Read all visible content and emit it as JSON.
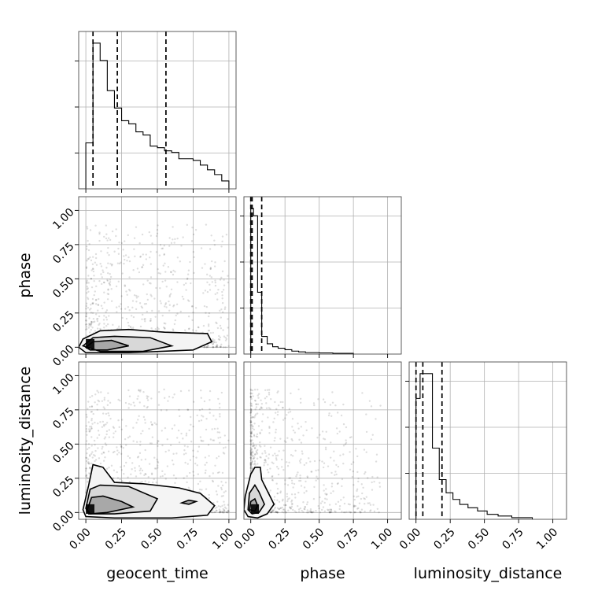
{
  "chart_data": {
    "type": "corner",
    "parameters": [
      "geocent_time",
      "phase",
      "luminosity_distance"
    ],
    "axis_labels": {
      "geocent_time": "geocent_time",
      "phase": "phase",
      "luminosity_distance": "luminosity_distance"
    },
    "tick_labels": [
      "0.00",
      "0.25",
      "0.50",
      "0.75",
      "1.00"
    ],
    "ticks": [
      0,
      0.25,
      0.5,
      0.75,
      1.0
    ],
    "axis_ranges": {
      "geocent_time": [
        -0.05,
        1.05
      ],
      "phase": [
        -0.05,
        1.1
      ],
      "luminosity_distance": [
        -0.05,
        1.1
      ]
    },
    "grid": true,
    "histograms": [
      {
        "parameter": "geocent_time",
        "bin_edges": [
          -0.05,
          -0.0,
          0.05,
          0.1,
          0.15,
          0.2,
          0.25,
          0.3,
          0.35,
          0.4,
          0.45,
          0.5,
          0.55,
          0.6,
          0.65,
          0.7,
          0.75,
          0.8,
          0.85,
          0.9,
          0.95,
          1.0
        ],
        "counts": [
          0,
          0.29,
          0.92,
          0.81,
          0.62,
          0.51,
          0.43,
          0.41,
          0.36,
          0.34,
          0.27,
          0.26,
          0.24,
          0.23,
          0.19,
          0.19,
          0.18,
          0.15,
          0.12,
          0.09,
          0.05,
          0.0
        ],
        "quantiles": [
          0.05,
          0.22,
          0.56
        ]
      },
      {
        "parameter": "phase",
        "bin_edges": [
          -0.05,
          0.0,
          0.02,
          0.05,
          0.08,
          0.12,
          0.16,
          0.2,
          0.25,
          0.3,
          0.35,
          0.4,
          0.5,
          0.6,
          0.75
        ],
        "counts": [
          0,
          0.99,
          0.94,
          0.42,
          0.12,
          0.07,
          0.05,
          0.04,
          0.03,
          0.02,
          0.015,
          0.01,
          0.008,
          0.005,
          0.0
        ],
        "quantiles": [
          0.0,
          0.01,
          0.08
        ]
      },
      {
        "parameter": "luminosity_distance",
        "bin_edges": [
          -0.05,
          -0.0,
          0.03,
          0.07,
          0.12,
          0.17,
          0.22,
          0.27,
          0.32,
          0.38,
          0.45,
          0.52,
          0.6,
          0.7,
          0.85
        ],
        "counts": [
          0,
          0.73,
          0.88,
          0.88,
          0.43,
          0.24,
          0.16,
          0.12,
          0.09,
          0.07,
          0.05,
          0.03,
          0.02,
          0.01,
          0.0
        ],
        "quantiles": [
          0.0,
          0.05,
          0.19
        ]
      }
    ],
    "density_panels": [
      {
        "x": "geocent_time",
        "y": "phase",
        "contours": [
          [
            [
              -0.05,
              0.0
            ],
            [
              -0.02,
              0.06
            ],
            [
              0.1,
              0.12
            ],
            [
              0.3,
              0.13
            ],
            [
              0.55,
              0.11
            ],
            [
              0.85,
              0.1
            ],
            [
              0.88,
              0.04
            ],
            [
              0.75,
              -0.02
            ],
            [
              0.3,
              -0.04
            ],
            [
              0.0,
              -0.04
            ]
          ],
          [
            [
              -0.02,
              0.01
            ],
            [
              0.05,
              0.07
            ],
            [
              0.2,
              0.08
            ],
            [
              0.45,
              0.07
            ],
            [
              0.6,
              0.01
            ],
            [
              0.4,
              -0.03
            ],
            [
              0.1,
              -0.03
            ]
          ],
          [
            [
              0.0,
              0.0
            ],
            [
              0.05,
              0.04
            ],
            [
              0.18,
              0.05
            ],
            [
              0.3,
              0.01
            ],
            [
              0.15,
              -0.02
            ],
            [
              0.03,
              -0.02
            ]
          ]
        ]
      },
      {
        "x": "geocent_time",
        "y": "luminosity_distance",
        "contours": [
          [
            [
              -0.02,
              0.02
            ],
            [
              0.02,
              0.2
            ],
            [
              0.05,
              0.35
            ],
            [
              0.12,
              0.33
            ],
            [
              0.2,
              0.22
            ],
            [
              0.4,
              0.21
            ],
            [
              0.65,
              0.18
            ],
            [
              0.8,
              0.14
            ],
            [
              0.9,
              0.05
            ],
            [
              0.85,
              -0.02
            ],
            [
              0.6,
              -0.04
            ],
            [
              0.2,
              -0.04
            ],
            [
              0.0,
              -0.03
            ]
          ],
          [
            [
              0.0,
              0.03
            ],
            [
              0.03,
              0.17
            ],
            [
              0.1,
              0.2
            ],
            [
              0.3,
              0.19
            ],
            [
              0.5,
              0.1
            ],
            [
              0.45,
              0.01
            ],
            [
              0.2,
              -0.01
            ],
            [
              0.02,
              -0.01
            ]
          ],
          [
            [
              0.01,
              0.02
            ],
            [
              0.04,
              0.11
            ],
            [
              0.12,
              0.12
            ],
            [
              0.25,
              0.08
            ],
            [
              0.33,
              0.04
            ],
            [
              0.15,
              0.0
            ],
            [
              0.03,
              -0.01
            ]
          ],
          [
            [
              0.67,
              0.07
            ],
            [
              0.72,
              0.09
            ],
            [
              0.77,
              0.08
            ],
            [
              0.72,
              0.06
            ]
          ]
        ]
      },
      {
        "x": "phase",
        "y": "luminosity_distance",
        "contours": [
          [
            [
              -0.05,
              0.02
            ],
            [
              -0.04,
              0.12
            ],
            [
              0.0,
              0.28
            ],
            [
              0.03,
              0.33
            ],
            [
              0.07,
              0.33
            ],
            [
              0.08,
              0.24
            ],
            [
              0.13,
              0.14
            ],
            [
              0.17,
              0.06
            ],
            [
              0.12,
              -0.01
            ],
            [
              0.05,
              -0.04
            ],
            [
              -0.02,
              -0.03
            ]
          ],
          [
            [
              -0.02,
              0.02
            ],
            [
              -0.01,
              0.14
            ],
            [
              0.03,
              0.2
            ],
            [
              0.06,
              0.15
            ],
            [
              0.1,
              0.06
            ],
            [
              0.06,
              0.0
            ],
            [
              0.01,
              -0.01
            ]
          ],
          [
            [
              -0.01,
              0.02
            ],
            [
              0.0,
              0.08
            ],
            [
              0.03,
              0.1
            ],
            [
              0.05,
              0.05
            ],
            [
              0.03,
              0.01
            ]
          ]
        ]
      }
    ]
  }
}
